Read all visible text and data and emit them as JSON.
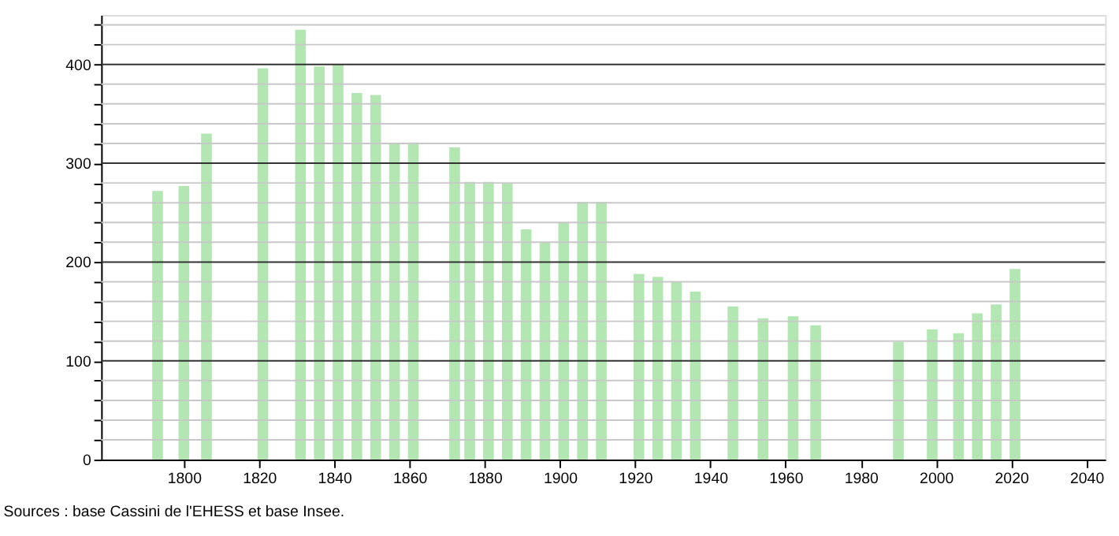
{
  "chart_data": {
    "type": "bar",
    "x": [
      1793,
      1800,
      1806,
      1821,
      1831,
      1836,
      1841,
      1846,
      1851,
      1856,
      1861,
      1872,
      1876,
      1881,
      1886,
      1891,
      1896,
      1901,
      1906,
      1911,
      1921,
      1926,
      1931,
      1936,
      1946,
      1954,
      1962,
      1968,
      1990,
      1999,
      2006,
      2011,
      2016,
      2021
    ],
    "values": [
      272,
      277,
      330,
      396,
      435,
      398,
      400,
      371,
      369,
      320,
      321,
      316,
      281,
      281,
      280,
      233,
      220,
      240,
      261,
      261,
      188,
      185,
      180,
      170,
      155,
      143,
      145,
      136,
      119,
      132,
      128,
      148,
      157,
      193
    ],
    "color": "#b3e6b3",
    "xlim": [
      1778,
      2045
    ],
    "xticks": [
      1800,
      1820,
      1840,
      1860,
      1880,
      1900,
      1920,
      1940,
      1960,
      1980,
      2000,
      2020,
      2040
    ],
    "ylim": [
      0,
      450
    ],
    "yticks": [
      0,
      {
        "value": 20,
        "label": null
      },
      {
        "value": 40,
        "label": null
      },
      {
        "value": 60,
        "label": null
      },
      {
        "value": 80,
        "label": null
      },
      100,
      {
        "value": 120,
        "label": null
      },
      {
        "value": 140,
        "label": null
      },
      {
        "value": 160,
        "label": null
      },
      {
        "value": 180,
        "label": null
      },
      200,
      {
        "value": 220,
        "label": null
      },
      {
        "value": 240,
        "label": null
      },
      {
        "value": 260,
        "label": null
      },
      {
        "value": 280,
        "label": null
      },
      300,
      {
        "value": 320,
        "label": null
      },
      {
        "value": 340,
        "label": null
      },
      {
        "value": 360,
        "label": null
      },
      {
        "value": 380,
        "label": null
      },
      400,
      {
        "value": 420,
        "label": null
      },
      {
        "value": 440,
        "label": null
      }
    ],
    "grid": true,
    "annotations": [
      "Sources : base Cassini de l'EHESS et base Insee."
    ]
  }
}
